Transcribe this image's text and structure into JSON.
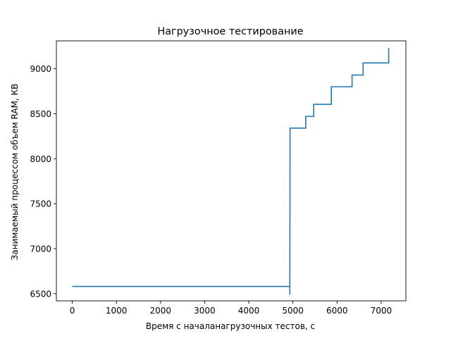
{
  "chart_data": {
    "type": "line",
    "title": "Нагрузочное тестирование",
    "xlabel": "Время с началанагрузочных тестов, с",
    "ylabel": "Занимаемый процессом объем RAM, КВ",
    "xlim": [
      -360,
      7560
    ],
    "ylim": [
      6420,
      9310
    ],
    "xticks": [
      0,
      1000,
      2000,
      3000,
      4000,
      5000,
      6000,
      7000
    ],
    "xtick_labels": [
      "0",
      "1000",
      "2000",
      "3000",
      "4000",
      "5000",
      "6000",
      "7000"
    ],
    "yticks": [
      6500,
      7000,
      7500,
      8000,
      8500,
      9000
    ],
    "ytick_labels": [
      "6500",
      "7000",
      "7500",
      "8000",
      "8500",
      "9000"
    ],
    "grid": false,
    "series": [
      {
        "color": "#1f77b4",
        "step": true,
        "points": [
          [
            0,
            6580
          ],
          [
            4930,
            6580
          ],
          [
            4930,
            6490
          ],
          [
            4935,
            8340
          ],
          [
            5290,
            8340
          ],
          [
            5290,
            8470
          ],
          [
            5470,
            8470
          ],
          [
            5470,
            8605
          ],
          [
            5870,
            8605
          ],
          [
            5870,
            8800
          ],
          [
            6340,
            8800
          ],
          [
            6340,
            8930
          ],
          [
            6590,
            8930
          ],
          [
            6590,
            9065
          ],
          [
            7170,
            9065
          ],
          [
            7170,
            9230
          ]
        ]
      }
    ]
  }
}
